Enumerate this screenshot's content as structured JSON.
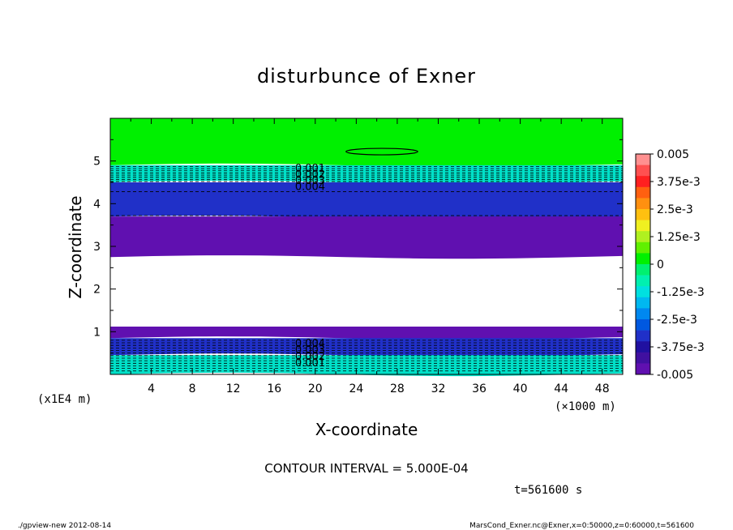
{
  "chart_data": {
    "type": "heatmap",
    "title": "disturbunce of Exner",
    "xlabel": "X-coordinate",
    "ylabel": "Z-coordinate",
    "x_unit": "(×1000 m)",
    "y_unit": "(x1E4 m)",
    "xlim": [
      0,
      50
    ],
    "ylim": [
      0,
      6
    ],
    "x_ticks": [
      4,
      8,
      12,
      16,
      20,
      24,
      28,
      32,
      36,
      40,
      44,
      48
    ],
    "y_ticks": [
      1,
      2,
      3,
      4,
      5
    ],
    "contour_interval": "CONTOUR INTERVAL = 5.000E-04",
    "time_label": "t=561600 s",
    "colorbar": {
      "labels": [
        "0.005",
        "3.75e-3",
        "2.5e-3",
        "1.25e-3",
        "0",
        "-1.25e-3",
        "-2.5e-3",
        "-3.75e-3",
        "-0.005"
      ],
      "min": -0.005,
      "max": 0.005
    },
    "contour_labels": {
      "upper": [
        "0.001",
        "0.002",
        "0.003",
        "0.004"
      ],
      "lower": [
        "0.004",
        "0.003",
        "0.002",
        "0.001"
      ]
    },
    "bands": [
      {
        "value": 0.0,
        "color": "#00f000",
        "z_low_left": 4.9,
        "z_low_right": 4.9,
        "z_high": 6.0
      },
      {
        "value": -0.001,
        "color": "#00e0c8",
        "z_low_left": 4.5,
        "z_low_right": 4.5,
        "z_high": 4.9
      },
      {
        "value": -0.0035,
        "color": "#2030c8",
        "z_low_left": 3.7,
        "z_low_right": 3.6,
        "z_high": 4.5
      },
      {
        "value": -0.0045,
        "color": "#6010b0",
        "z_low_left": 2.75,
        "z_low_right": 2.75,
        "z_high": 3.7
      },
      {
        "value": -0.0045,
        "color": "#6010b0",
        "z_low_left": 0.85,
        "z_low_right": 0.85,
        "z_high": 1.12
      },
      {
        "value": -0.0035,
        "color": "#2030c8",
        "z_low_left": 0.45,
        "z_low_right": 0.45,
        "z_high": 0.85
      },
      {
        "value": -0.001,
        "color": "#00e0c8",
        "z_low_left": 0.0,
        "z_low_right": 0.0,
        "z_high": 0.45
      }
    ],
    "footer_left": "./gpview-new   2012-08-14",
    "footer_right": "MarsCond_Exner.nc@Exner,x=0:50000,z=0:60000,t=561600"
  }
}
